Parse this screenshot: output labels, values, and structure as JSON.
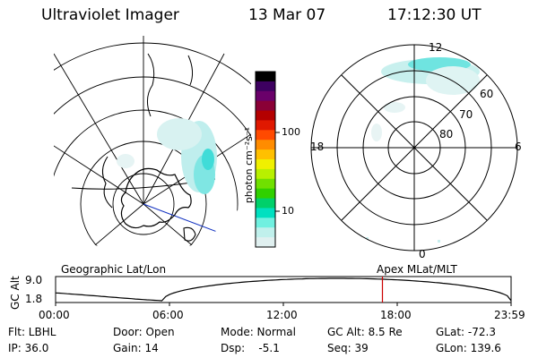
{
  "header": {
    "instrument": "Ultraviolet Imager",
    "date": "13 Mar 07",
    "time": "17:12:30 UT"
  },
  "colorbar": {
    "unit_label": "photon cm⁻²s⁻¹",
    "ticks": [
      "100",
      "10"
    ],
    "colors": [
      "#000000",
      "#3d0060",
      "#6a006a",
      "#8a0036",
      "#b40000",
      "#e01800",
      "#ff4a00",
      "#ff8c00",
      "#ffc000",
      "#f0f000",
      "#b8f000",
      "#70e000",
      "#30d000",
      "#00d06a",
      "#00e0c0",
      "#70f0e0",
      "#c0f0ec",
      "#e0f0f0"
    ]
  },
  "geo_map": {
    "label": "Geographic Lat/Lon"
  },
  "polar_plot": {
    "label": "Apex MLat/MLT",
    "mlt_labels": {
      "top": "12",
      "left": "18",
      "right": "6",
      "bottom": "0"
    },
    "lat_labels": [
      "60",
      "70",
      "80"
    ]
  },
  "orbit_plot": {
    "ylabel": "GC Alt",
    "y_ticks": [
      "9.0",
      "1.8"
    ],
    "x_ticks": [
      "00:00",
      "06:00",
      "12:00",
      "18:00",
      "23:59"
    ],
    "current_marker_time": "17:12:30",
    "marker_color": "#cc0000"
  },
  "status": {
    "flt": "Flt: LBHL",
    "ip": "IP: 36.0",
    "door": "Door: Open",
    "gain": "Gain: 14",
    "mode": "Mode: Normal",
    "dsp": "Dsp:    -5.1",
    "gc_alt": "GC Alt: 8.5 Re",
    "seq": "Seq: 39",
    "glat": "GLat: -72.3",
    "glon": "GLon: 139.6"
  }
}
